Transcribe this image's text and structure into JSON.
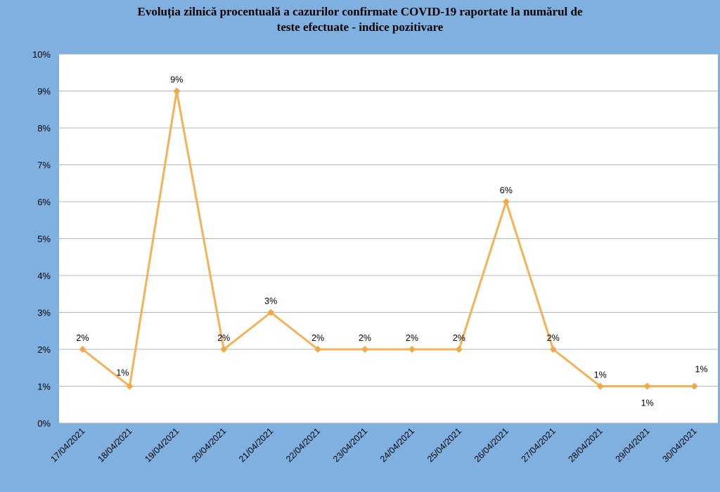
{
  "chart_data": {
    "type": "line",
    "title_lines": [
      "Evoluția zilnică procentuală a cazurilor confirmate COVID-19 raportate la numărul de",
      "teste efectuate - indice pozitivare"
    ],
    "categories": [
      "17/04/2021",
      "18/04/2021",
      "19/04/2021",
      "20/04/2021",
      "21/04/2021",
      "22/04/2021",
      "23/04/2021",
      "24/04/2021",
      "25/04/2021",
      "26/04/2021",
      "27/04/2021",
      "28/04/2021",
      "29/04/2021",
      "30/04/2021"
    ],
    "series": [
      {
        "values": [
          2,
          1,
          9,
          2,
          3,
          2,
          2,
          2,
          2,
          6,
          2,
          1,
          1,
          1
        ],
        "data_labels": [
          "2%",
          "1%",
          "9%",
          "2%",
          "3%",
          "2%",
          "2%",
          "2%",
          "2%",
          "6%",
          "2%",
          "1%",
          "1%",
          "1%"
        ]
      }
    ],
    "ylim": [
      0,
      10
    ],
    "yticks": [
      "0%",
      "1%",
      "2%",
      "3%",
      "4%",
      "5%",
      "6%",
      "7%",
      "8%",
      "9%",
      "10%"
    ],
    "grid": true,
    "legend": "none",
    "colors": {
      "background": "#7fb0e0",
      "plot_area": "#ffffff",
      "line": "#f5b155",
      "marker": "#f0a848",
      "gridline": "#b5b5b5"
    }
  }
}
